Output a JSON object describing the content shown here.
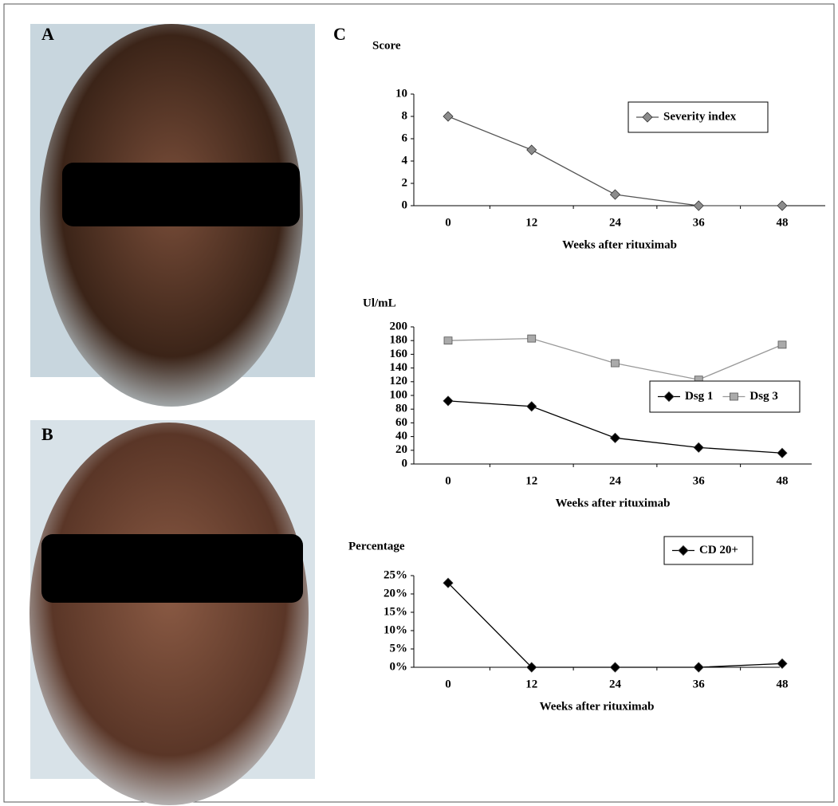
{
  "panel_labels": [
    "A",
    "B",
    "C"
  ],
  "chart_data": [
    {
      "type": "line",
      "y_label": "Score",
      "x_label": "Weeks after rituximab",
      "categories": [
        "0",
        "12",
        "24",
        "36",
        "48"
      ],
      "ylim": [
        0,
        10
      ],
      "yticks": [
        0,
        2,
        4,
        6,
        8,
        10
      ],
      "series": [
        {
          "name": "Severity index",
          "color": "#555555",
          "marker_color": "#8c8c8c",
          "marker": "diamond",
          "values": [
            8,
            5,
            1,
            0,
            0
          ]
        }
      ]
    },
    {
      "type": "line",
      "y_label": "Ul/mL",
      "x_label": "Weeks after rituximab",
      "categories": [
        "0",
        "12",
        "24",
        "36",
        "48"
      ],
      "ylim": [
        0,
        200
      ],
      "yticks": [
        0,
        20,
        40,
        60,
        80,
        100,
        120,
        140,
        160,
        180,
        200
      ],
      "series": [
        {
          "name": "Dsg 1",
          "color": "#000000",
          "marker_color": "#000000",
          "marker": "diamond",
          "values": [
            92,
            84,
            38,
            24,
            16
          ]
        },
        {
          "name": "Dsg 3",
          "color": "#999999",
          "marker_color": "#aaaaaa",
          "marker": "square",
          "values": [
            180,
            183,
            147,
            123,
            174
          ]
        }
      ]
    },
    {
      "type": "line",
      "y_label": "Percentage",
      "x_label": "Weeks after rituximab",
      "categories": [
        "0",
        "12",
        "24",
        "36",
        "48"
      ],
      "ylim": [
        0,
        25
      ],
      "yticks": [
        {
          "value": 0,
          "label": "0%"
        },
        {
          "value": 5,
          "label": "5%"
        },
        {
          "value": 10,
          "label": "10%"
        },
        {
          "value": 15,
          "label": "15%"
        },
        {
          "value": 20,
          "label": "20%"
        },
        {
          "value": 25,
          "label": "25%"
        }
      ],
      "series": [
        {
          "name": "CD 20+",
          "color": "#000000",
          "marker_color": "#000000",
          "marker": "diamond",
          "values": [
            23,
            0,
            0,
            0,
            1
          ]
        }
      ]
    }
  ]
}
